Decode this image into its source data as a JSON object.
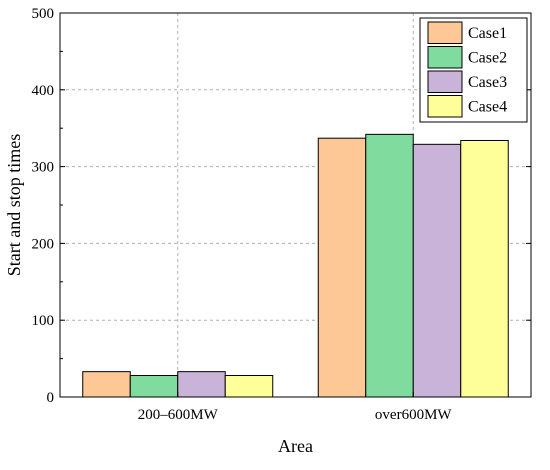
{
  "chart_data": {
    "type": "bar",
    "title": "",
    "xlabel": "Area",
    "ylabel": "Start and stop times",
    "categories": [
      "200–600MW",
      "over600MW"
    ],
    "series": [
      {
        "name": "Case1",
        "values": [
          33,
          337
        ],
        "color": "#FDC896"
      },
      {
        "name": "Case2",
        "values": [
          28,
          342
        ],
        "color": "#7FDB9E"
      },
      {
        "name": "Case3",
        "values": [
          33,
          329
        ],
        "color": "#C9B3D9"
      },
      {
        "name": "Case4",
        "values": [
          28,
          334
        ],
        "color": "#FFFF99"
      }
    ],
    "ylim": [
      0,
      500
    ],
    "yticks": [
      0,
      100,
      200,
      300,
      400,
      500
    ],
    "grid": true,
    "legend_position": "top-right"
  }
}
